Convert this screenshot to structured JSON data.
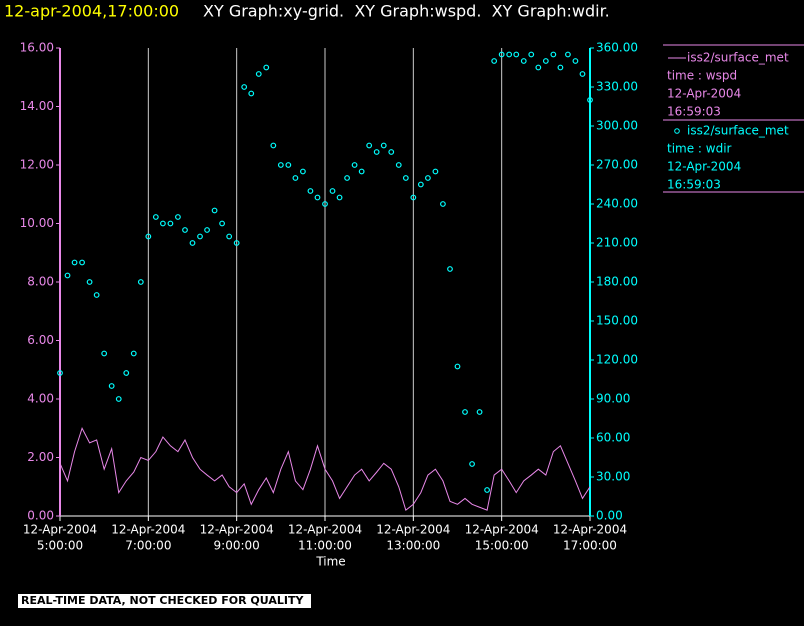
{
  "chart_data": {
    "type": "combo",
    "title_time": "12-apr-2004,17:00:00",
    "title": "XY Graph:xy-grid.  XY Graph:wspd.  XY Graph:wdir.",
    "xlabel": "Time",
    "footer": "REAL-TIME DATA, NOT CHECKED FOR QUALITY",
    "grid": true,
    "xlim": [
      5,
      17
    ],
    "ylim": [
      0,
      16
    ],
    "y2lim": [
      0,
      360
    ],
    "xticks": [
      {
        "value": 5,
        "label": [
          "12-Apr-2004",
          "5:00:00"
        ]
      },
      {
        "value": 7,
        "label": [
          "12-Apr-2004",
          "7:00:00"
        ]
      },
      {
        "value": 9,
        "label": [
          "12-Apr-2004",
          "9:00:00"
        ]
      },
      {
        "value": 11,
        "label": [
          "12-Apr-2004",
          "11:00:00"
        ]
      },
      {
        "value": 13,
        "label": [
          "12-Apr-2004",
          "13:00:00"
        ]
      },
      {
        "value": 15,
        "label": [
          "12-Apr-2004",
          "15:00:00"
        ]
      },
      {
        "value": 17,
        "label": [
          "12-Apr-2004",
          "17:00:00"
        ]
      }
    ],
    "yticks": [
      {
        "value": 0,
        "label": "0.00"
      },
      {
        "value": 2,
        "label": "2.00"
      },
      {
        "value": 4,
        "label": "4.00"
      },
      {
        "value": 6,
        "label": "6.00"
      },
      {
        "value": 8,
        "label": "8.00"
      },
      {
        "value": 10,
        "label": "10.00"
      },
      {
        "value": 12,
        "label": "12.00"
      },
      {
        "value": 14,
        "label": "14.00"
      },
      {
        "value": 16,
        "label": "16.00"
      }
    ],
    "y2ticks": [
      {
        "value": 0,
        "label": "0.00"
      },
      {
        "value": 30,
        "label": "30.00"
      },
      {
        "value": 60,
        "label": "60.00"
      },
      {
        "value": 90,
        "label": "90.00"
      },
      {
        "value": 120,
        "label": "120.00"
      },
      {
        "value": 150,
        "label": "150.00"
      },
      {
        "value": 180,
        "label": "180.00"
      },
      {
        "value": 210,
        "label": "210.00"
      },
      {
        "value": 240,
        "label": "240.00"
      },
      {
        "value": 270,
        "label": "270.00"
      },
      {
        "value": 300,
        "label": "300.00"
      },
      {
        "value": 330,
        "label": "330.00"
      },
      {
        "value": 360,
        "label": "360.00"
      }
    ],
    "x": [
      5,
      5.17,
      5.33,
      5.5,
      5.67,
      5.83,
      6,
      6.17,
      6.33,
      6.5,
      6.67,
      6.83,
      7,
      7.17,
      7.33,
      7.5,
      7.67,
      7.83,
      8,
      8.17,
      8.33,
      8.5,
      8.67,
      8.83,
      9,
      9.17,
      9.33,
      9.5,
      9.67,
      9.83,
      10,
      10.17,
      10.33,
      10.5,
      10.67,
      10.83,
      11,
      11.17,
      11.33,
      11.5,
      11.67,
      11.83,
      12,
      12.17,
      12.33,
      12.5,
      12.67,
      12.83,
      13,
      13.17,
      13.33,
      13.5,
      13.67,
      13.83,
      14,
      14.17,
      14.33,
      14.5,
      14.67,
      14.83,
      15,
      15.17,
      15.33,
      15.5,
      15.67,
      15.83,
      16,
      16.17,
      16.33,
      16.5,
      16.67,
      16.83,
      17
    ],
    "series": [
      {
        "name": "iss2/surface_met",
        "type": "line",
        "axis": "y",
        "color": "#e888e8",
        "legend_lines": [
          "time : wspd",
          "12-Apr-2004",
          "16:59:03"
        ],
        "values": [
          1.8,
          1.2,
          2.2,
          3.0,
          2.5,
          2.6,
          1.6,
          2.3,
          0.8,
          1.2,
          1.5,
          2.0,
          1.9,
          2.2,
          2.7,
          2.4,
          2.2,
          2.6,
          2.0,
          1.6,
          1.4,
          1.2,
          1.4,
          1.0,
          0.8,
          1.1,
          0.4,
          0.9,
          1.3,
          0.8,
          1.6,
          2.2,
          1.2,
          0.9,
          1.6,
          2.4,
          1.6,
          1.2,
          0.6,
          1.0,
          1.4,
          1.6,
          1.2,
          1.5,
          1.8,
          1.6,
          1.0,
          0.2,
          0.4,
          0.8,
          1.4,
          1.6,
          1.2,
          0.5,
          0.4,
          0.6,
          0.4,
          0.3,
          0.2,
          1.4,
          1.6,
          1.2,
          0.8,
          1.2,
          1.4,
          1.6,
          1.4,
          2.2,
          2.4,
          1.8,
          1.2,
          0.6,
          1.0
        ]
      },
      {
        "name": "iss2/surface_met",
        "type": "scatter",
        "axis": "y2",
        "color": "#00ffff",
        "legend_lines": [
          "time : wdir",
          "12-Apr-2004",
          "16:59:03"
        ],
        "values": [
          110,
          185,
          195,
          195,
          180,
          170,
          125,
          100,
          90,
          110,
          125,
          180,
          215,
          230,
          225,
          225,
          230,
          220,
          210,
          215,
          220,
          235,
          225,
          215,
          210,
          330,
          325,
          340,
          345,
          285,
          270,
          270,
          260,
          265,
          250,
          245,
          240,
          250,
          245,
          260,
          270,
          265,
          285,
          280,
          285,
          280,
          270,
          260,
          245,
          255,
          260,
          265,
          240,
          190,
          115,
          80,
          40,
          80,
          20,
          350,
          355,
          355,
          355,
          350,
          355,
          345,
          350,
          355,
          345,
          355,
          350,
          340,
          320
        ]
      }
    ]
  }
}
